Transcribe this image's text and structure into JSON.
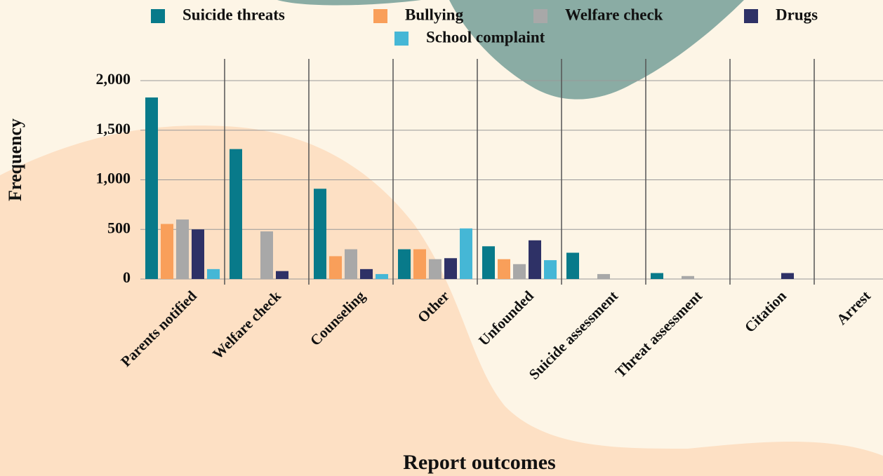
{
  "chart_data": {
    "type": "bar",
    "x_label": "Report outcomes",
    "y_label": "Frequency",
    "categories": [
      "Parents notified",
      "Welfare check",
      "Counseling",
      "Other",
      "Unfounded",
      "Suicide assessment",
      "Threat assessment",
      "Citation",
      "Arrest"
    ],
    "series": [
      {
        "name": "Suicide threats",
        "color": "#087a8a",
        "values": [
          1830,
          1310,
          910,
          300,
          330,
          265,
          60,
          0,
          0
        ]
      },
      {
        "name": "Bullying",
        "color": "#f99f5a",
        "values": [
          555,
          0,
          230,
          300,
          200,
          0,
          0,
          0,
          0
        ]
      },
      {
        "name": "Welfare check",
        "color": "#a8a8a8",
        "values": [
          600,
          480,
          300,
          200,
          150,
          50,
          30,
          0,
          0
        ]
      },
      {
        "name": "Drugs",
        "color": "#2e3166",
        "values": [
          500,
          80,
          100,
          210,
          390,
          0,
          0,
          60,
          0
        ]
      },
      {
        "name": "School complaint",
        "color": "#45b7d6",
        "values": [
          100,
          0,
          50,
          510,
          190,
          0,
          0,
          0,
          0
        ]
      }
    ],
    "ylim": [
      0,
      2000
    ],
    "yticks": [
      0,
      500,
      {
        "value": 1000,
        "label": "1,000"
      },
      {
        "value": 1500,
        "label": "1,500"
      },
      {
        "value": 2000,
        "label": "2,000"
      }
    ],
    "grid": true,
    "legend": "top"
  }
}
